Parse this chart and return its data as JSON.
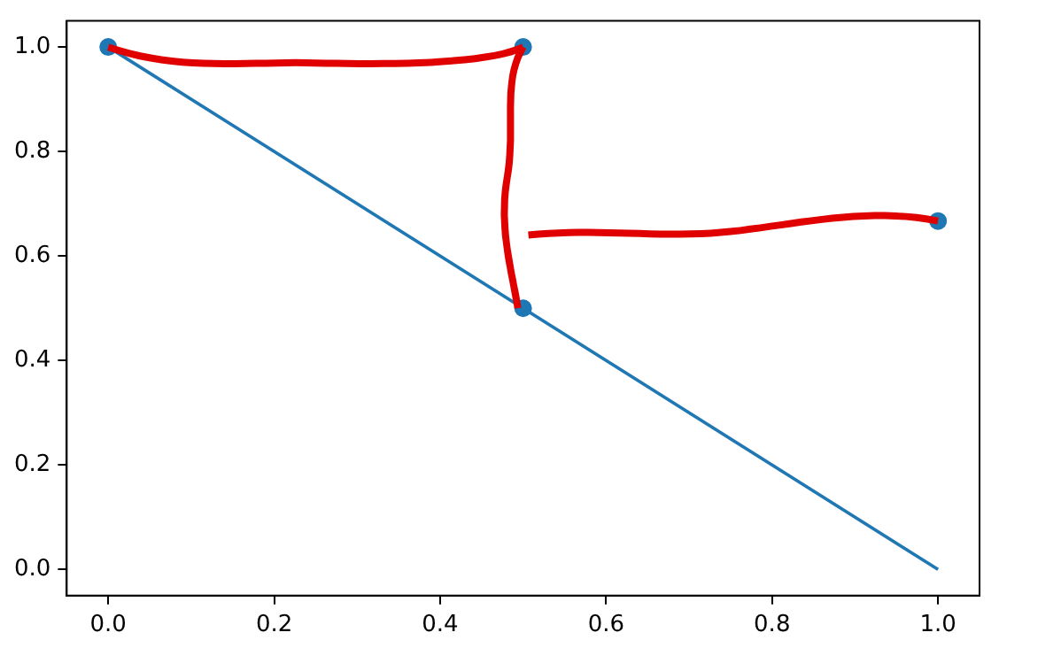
{
  "chart_data": {
    "type": "line",
    "xlim": [
      -0.05,
      1.05
    ],
    "ylim": [
      -0.05,
      1.05
    ],
    "xticks": [
      {
        "value": 0,
        "label": "0.0"
      },
      {
        "value": 0.2,
        "label": "0.2"
      },
      {
        "value": 0.4,
        "label": "0.4"
      },
      {
        "value": 0.6,
        "label": "0.6"
      },
      {
        "value": 0.8,
        "label": "0.8"
      },
      {
        "value": 1,
        "label": "1.0"
      }
    ],
    "yticks": [
      {
        "value": 0,
        "label": "0.0"
      },
      {
        "value": 0.2,
        "label": "0.2"
      },
      {
        "value": 0.4,
        "label": "0.4"
      },
      {
        "value": 0.6,
        "label": "0.6"
      },
      {
        "value": 0.8,
        "label": "0.8"
      },
      {
        "value": 1,
        "label": "1.0"
      }
    ],
    "grid": false,
    "legend": false,
    "series": [
      {
        "color": "#1f77b4",
        "x": [
          0,
          1
        ],
        "values": [
          1,
          0
        ],
        "marker": "none"
      },
      {
        "type": "scatter",
        "color": "#1f77b4",
        "x": [
          0,
          0.5,
          0.5,
          1
        ],
        "values": [
          1,
          1,
          0.5,
          0.667
        ],
        "marker": "circle"
      }
    ]
  }
}
